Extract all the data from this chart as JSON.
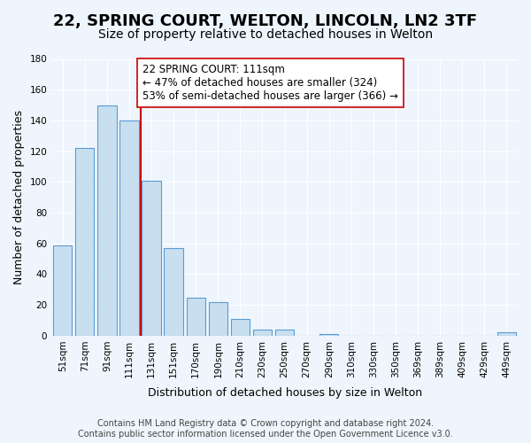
{
  "title": "22, SPRING COURT, WELTON, LINCOLN, LN2 3TF",
  "subtitle": "Size of property relative to detached houses in Welton",
  "xlabel": "Distribution of detached houses by size in Welton",
  "ylabel": "Number of detached properties",
  "bar_labels": [
    "51sqm",
    "71sqm",
    "91sqm",
    "111sqm",
    "131sqm",
    "151sqm",
    "170sqm",
    "190sqm",
    "210sqm",
    "230sqm",
    "250sqm",
    "270sqm",
    "290sqm",
    "310sqm",
    "330sqm",
    "350sqm",
    "369sqm",
    "389sqm",
    "409sqm",
    "429sqm",
    "449sqm"
  ],
  "bar_values": [
    59,
    122,
    150,
    140,
    101,
    57,
    25,
    22,
    11,
    4,
    4,
    0,
    1,
    0,
    0,
    0,
    0,
    0,
    0,
    0,
    2
  ],
  "bar_color": "#c8dff0",
  "bar_edge_color": "#5b9bd5",
  "vline_color": "#cc0000",
  "annotation_line1": "22 SPRING COURT: 111sqm",
  "annotation_line2": "← 47% of detached houses are smaller (324)",
  "annotation_line3": "53% of semi-detached houses are larger (366) →",
  "annotation_box_edge_color": "#cc0000",
  "annotation_box_face_color": "#ffffff",
  "ylim": [
    0,
    180
  ],
  "yticks": [
    0,
    20,
    40,
    60,
    80,
    100,
    120,
    140,
    160,
    180
  ],
  "footer_line1": "Contains HM Land Registry data © Crown copyright and database right 2024.",
  "footer_line2": "Contains public sector information licensed under the Open Government Licence v3.0.",
  "bg_color": "#eef5fc",
  "title_fontsize": 13,
  "subtitle_fontsize": 10,
  "axis_label_fontsize": 9,
  "tick_fontsize": 7.5,
  "annotation_fontsize": 8.5,
  "footer_fontsize": 7
}
